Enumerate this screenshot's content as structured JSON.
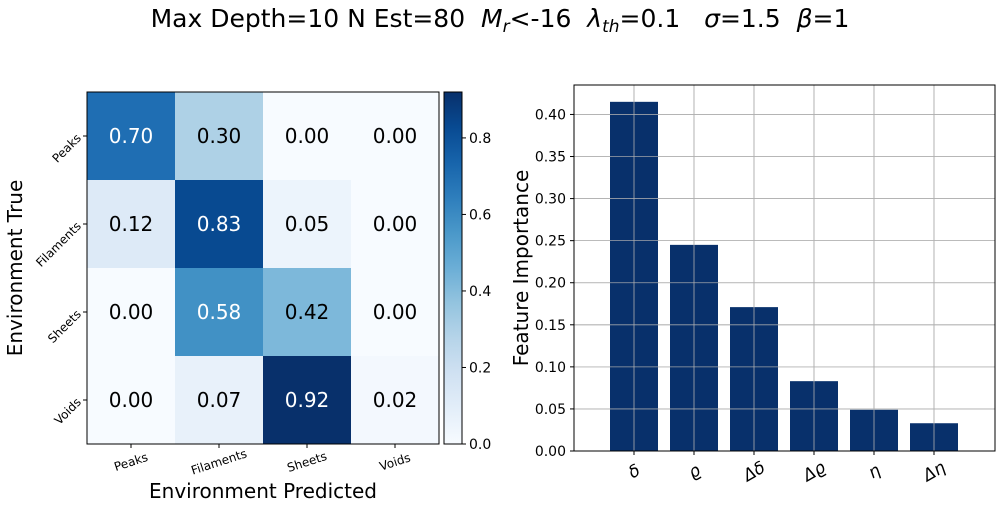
{
  "title": "Max Depth=10 N Est=80  Mr<-16  λth=0.1   σ=1.5  β=1",
  "title_parts": [
    {
      "text": "Max Depth=10 N Est=80  ",
      "style": "normal"
    },
    {
      "text": "M",
      "style": "italic"
    },
    {
      "text": "r",
      "style": "italic-sub"
    },
    {
      "text": "<-16  ",
      "style": "normal"
    },
    {
      "text": "λ",
      "style": "italic"
    },
    {
      "text": "th",
      "style": "italic-sub"
    },
    {
      "text": "=0.1   ",
      "style": "normal"
    },
    {
      "text": "σ",
      "style": "italic"
    },
    {
      "text": "=1.5  ",
      "style": "normal"
    },
    {
      "text": "β",
      "style": "italic"
    },
    {
      "text": "=1",
      "style": "normal"
    }
  ],
  "colors": {
    "bar": "#08306b",
    "grid": "#b0b0b0",
    "cmap_low": "#f7fbff",
    "cmap_high": "#08306b"
  },
  "chart_data": [
    {
      "type": "heatmap",
      "xlabel": "Environment Predicted",
      "ylabel": "Environment True",
      "x_categories": [
        "Peaks",
        "Filaments",
        "Sheets",
        "Voids"
      ],
      "y_categories": [
        "Peaks",
        "Filaments",
        "Sheets",
        "Voids"
      ],
      "values": [
        [
          0.7,
          0.3,
          0.0,
          0.0
        ],
        [
          0.12,
          0.83,
          0.05,
          0.0
        ],
        [
          0.0,
          0.58,
          0.42,
          0.0
        ],
        [
          0.0,
          0.07,
          0.92,
          0.02
        ]
      ],
      "value_format": "0.00",
      "colormap": "Blues",
      "colorbar_range": [
        0,
        0.92
      ],
      "colorbar_ticks": [
        0.0,
        0.2,
        0.4,
        0.6,
        0.8
      ],
      "colorbar_tick_labels": [
        "0.0",
        "0.2",
        "0.4",
        "0.6",
        "0.8"
      ]
    },
    {
      "type": "bar",
      "ylabel": "Feature Importance",
      "xlabel": "",
      "categories": [
        "δ",
        "ϱ",
        "Δδ",
        "Δϱ",
        "η",
        "Δη"
      ],
      "values": [
        0.415,
        0.245,
        0.171,
        0.083,
        0.049,
        0.033
      ],
      "ylim": [
        0,
        0.435
      ],
      "yticks": [
        0.0,
        0.05,
        0.1,
        0.15,
        0.2,
        0.25,
        0.3,
        0.35,
        0.4
      ],
      "ytick_labels": [
        "0.00",
        "0.05",
        "0.10",
        "0.15",
        "0.20",
        "0.25",
        "0.30",
        "0.35",
        "0.40"
      ],
      "grid": true
    }
  ]
}
